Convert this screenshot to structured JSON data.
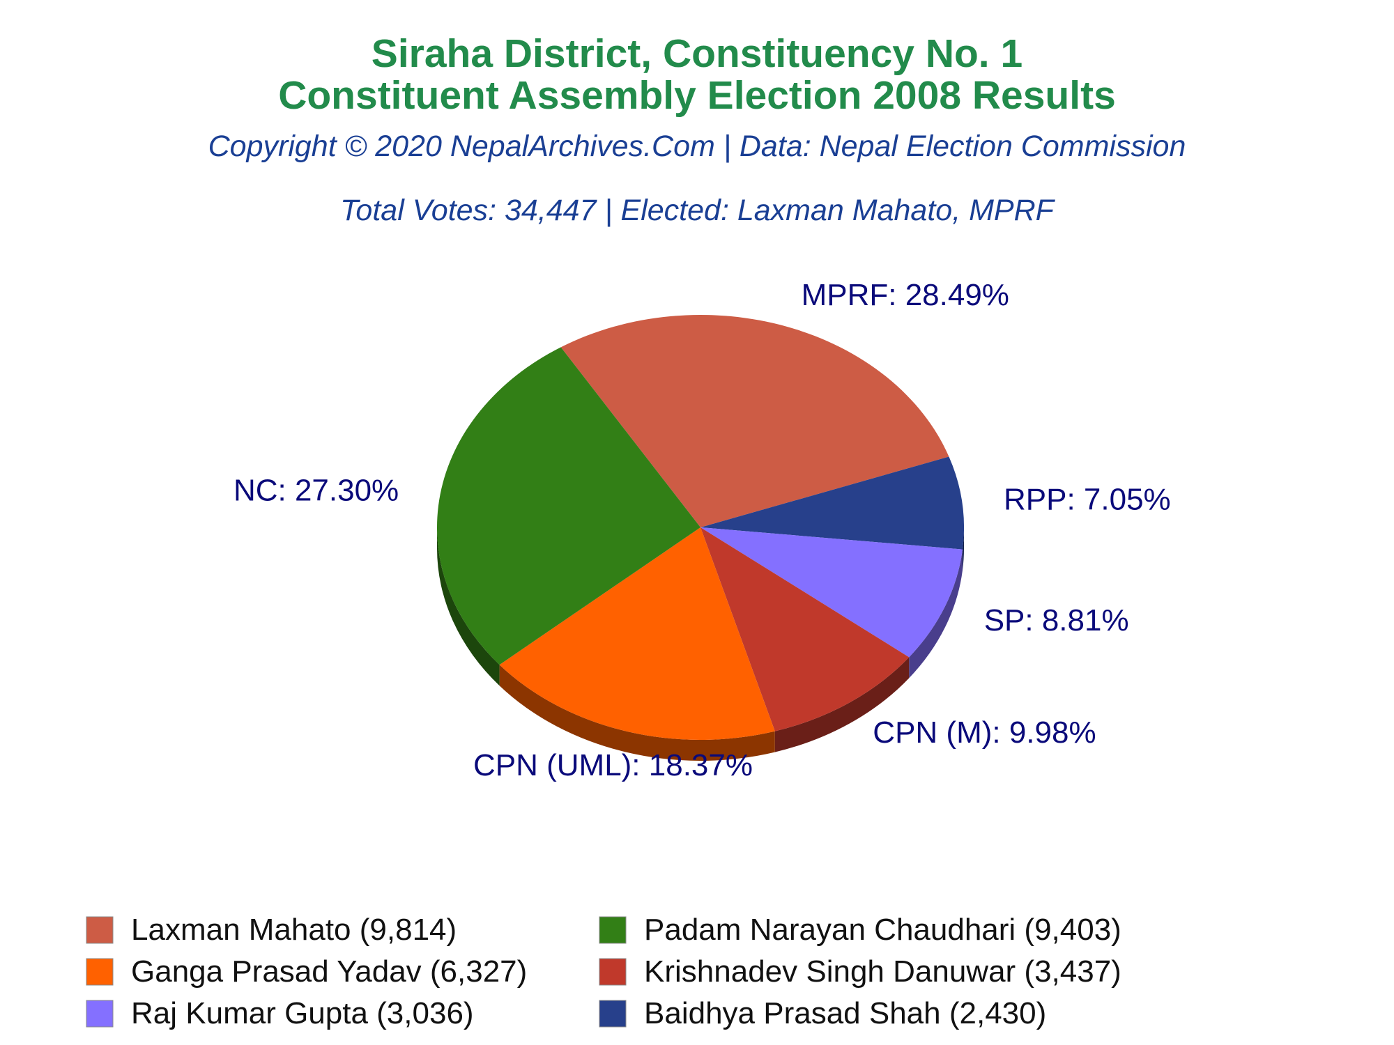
{
  "chart_data": {
    "type": "pie",
    "title": "Siraha District, Constituency No. 1",
    "title_line2": "Constituent Assembly Election 2008 Results",
    "subtitle": "Copyright © 2020 NepalArchives.Com | Data: Nepal Election Commission",
    "info": "Total Votes: 34,447 | Elected: Laxman Mahato, MPRF",
    "slices": [
      {
        "party": "MPRF",
        "label": "MPRF: 28.49%",
        "percent": 28.49,
        "candidate": "Laxman Mahato",
        "votes": 9814,
        "legend": "Laxman Mahato (9,814)",
        "color": "#cd5c45"
      },
      {
        "party": "RPP",
        "label": "RPP: 7.05%",
        "percent": 7.05,
        "candidate": "Baidhya Prasad Shah",
        "votes": 2430,
        "legend": "Baidhya Prasad Shah (2,430)",
        "color": "#27408b"
      },
      {
        "party": "SP",
        "label": "SP: 8.81%",
        "percent": 8.81,
        "candidate": "Raj Kumar Gupta",
        "votes": 3036,
        "legend": "Raj Kumar Gupta (3,036)",
        "color": "#8470ff"
      },
      {
        "party": "CPN (M)",
        "label": "CPN (M): 9.98%",
        "percent": 9.98,
        "candidate": "Krishnadev Singh Danuwar",
        "votes": 3437,
        "legend": "Krishnadev Singh Danuwar (3,437)",
        "color": "#c0392b"
      },
      {
        "party": "CPN (UML)",
        "label": "CPN (UML): 18.37%",
        "percent": 18.37,
        "candidate": "Ganga Prasad Yadav",
        "votes": 6327,
        "legend": "Ganga Prasad Yadav (6,327)",
        "color": "#ff6100"
      },
      {
        "party": "NC",
        "label": "NC: 27.30%",
        "percent": 27.3,
        "candidate": "Padam Narayan Chaudhari",
        "votes": 9403,
        "legend": "Padam Narayan Chaudhari (9,403)",
        "color": "#327f16"
      }
    ],
    "legend_order": [
      0,
      5,
      4,
      3,
      2,
      1
    ],
    "legend_placement": "bottom"
  }
}
